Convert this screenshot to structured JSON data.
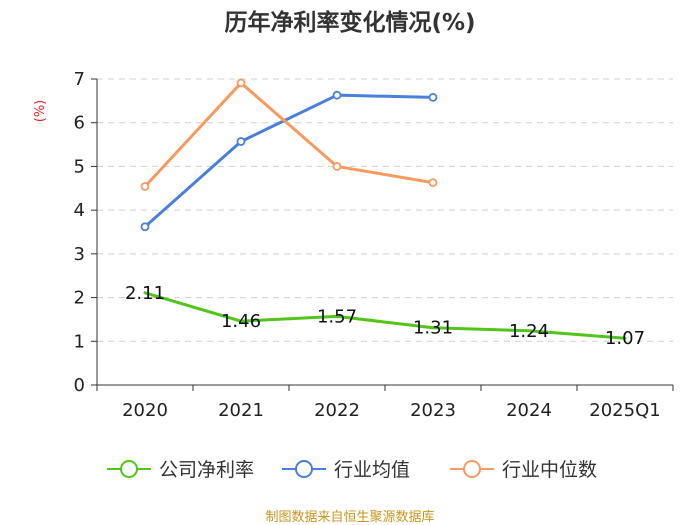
{
  "chart_data": {
    "type": "line",
    "title": "历年净利率变化情况(%)",
    "ylabel": "(%)",
    "xlabel": "",
    "categories": [
      "2020",
      "2021",
      "2022",
      "2023",
      "2024",
      "2025Q1"
    ],
    "ylim": [
      0,
      7
    ],
    "yticks": [
      0,
      1,
      2,
      3,
      4,
      5,
      6,
      7
    ],
    "grid": "horizontal dashed",
    "legend_position": "bottom",
    "series": [
      {
        "name": "公司净利率",
        "color": "#52c41a",
        "values": [
          2.11,
          1.46,
          1.57,
          1.31,
          1.24,
          1.07
        ],
        "labels": [
          "2.11",
          "1.46",
          "1.57",
          "1.31",
          "1.24",
          "1.07"
        ],
        "markers": false
      },
      {
        "name": "行业均值",
        "color": "#4a7fdb",
        "values": [
          3.62,
          5.57,
          6.63,
          6.58,
          null,
          null
        ],
        "markers": true
      },
      {
        "name": "行业中位数",
        "color": "#f79a5e",
        "values": [
          4.54,
          6.91,
          5.0,
          4.63,
          null,
          null
        ],
        "markers": true
      }
    ],
    "source": "制图数据来自恒生聚源数据库"
  }
}
